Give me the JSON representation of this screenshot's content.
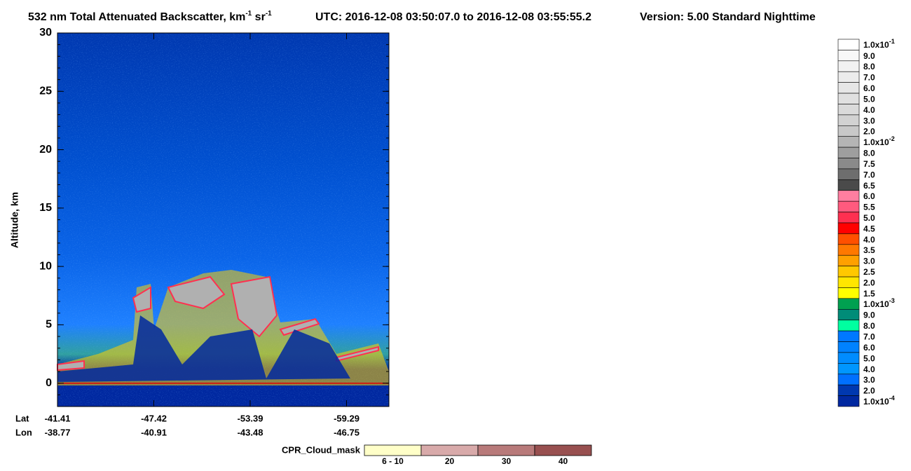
{
  "chart_data": {
    "type": "curtain",
    "title": {
      "main": "532 nm Total Attenuated Backscatter, km",
      "main_sup": "-1",
      "unit2": " sr",
      "unit2_sup": "-1",
      "utc": "UTC:  2016-12-08 03:50:07.0  to  2016-12-08 03:55:55.2",
      "version": "Version: 5.00  Standard  Nighttime"
    },
    "y_label": "Altitude, km",
    "ylim": [
      -2,
      30
    ],
    "yticks": [
      0,
      5,
      10,
      15,
      20,
      25,
      30
    ],
    "x_row_labels": [
      "Lat",
      "Lon"
    ],
    "x_ticks": {
      "lat": [
        "-41.41",
        "-47.42",
        "-53.39",
        "-59.29"
      ],
      "lon": [
        "-38.77",
        "-40.91",
        "-43.48",
        "-46.75"
      ]
    },
    "colorbar": {
      "labels": [
        {
          "base": "1.0x10",
          "sup": "-1"
        },
        "9.0",
        "8.0",
        "7.0",
        "6.0",
        "5.0",
        "4.0",
        "3.0",
        "2.0",
        {
          "base": "1.0x10",
          "sup": "-2"
        },
        "8.0",
        "7.5",
        "7.0",
        "6.5",
        "6.0",
        "5.5",
        "5.0",
        "4.5",
        "4.0",
        "3.5",
        "3.0",
        "2.5",
        "2.0",
        "1.5",
        {
          "base": "1.0x10",
          "sup": "-3"
        },
        "9.0",
        "8.0",
        "7.0",
        "6.0",
        "5.0",
        "4.0",
        "3.0",
        "2.0",
        {
          "base": "1.0x10",
          "sup": "-4"
        }
      ],
      "colors": [
        "#ffffff",
        "#f8f8f8",
        "#f2f2f2",
        "#ececec",
        "#e6e6e6",
        "#e0e0e0",
        "#dadada",
        "#d2d2d2",
        "#c8c8c8",
        "#b4b4b4",
        "#9e9e9e",
        "#8a8a8a",
        "#6e6e6e",
        "#4a4a4a",
        "#ff7ea0",
        "#ff5a7e",
        "#ff3050",
        "#ff0000",
        "#ff5000",
        "#ff7800",
        "#ffa000",
        "#ffc800",
        "#ffe600",
        "#ffff00",
        "#00a050",
        "#008c78",
        "#00ffa0",
        "#0078ff",
        "#0082ff",
        "#008cff",
        "#0096ff",
        "#0070ff",
        "#0038b0",
        "#0028a0"
      ]
    },
    "cloud_mask": {
      "label": "CPR_Cloud_mask",
      "categories": [
        "6 - 10",
        "20",
        "30",
        "40"
      ],
      "colors": [
        "#ffffc8",
        "#d8aaaa",
        "#b87a7a",
        "#985050"
      ]
    }
  }
}
